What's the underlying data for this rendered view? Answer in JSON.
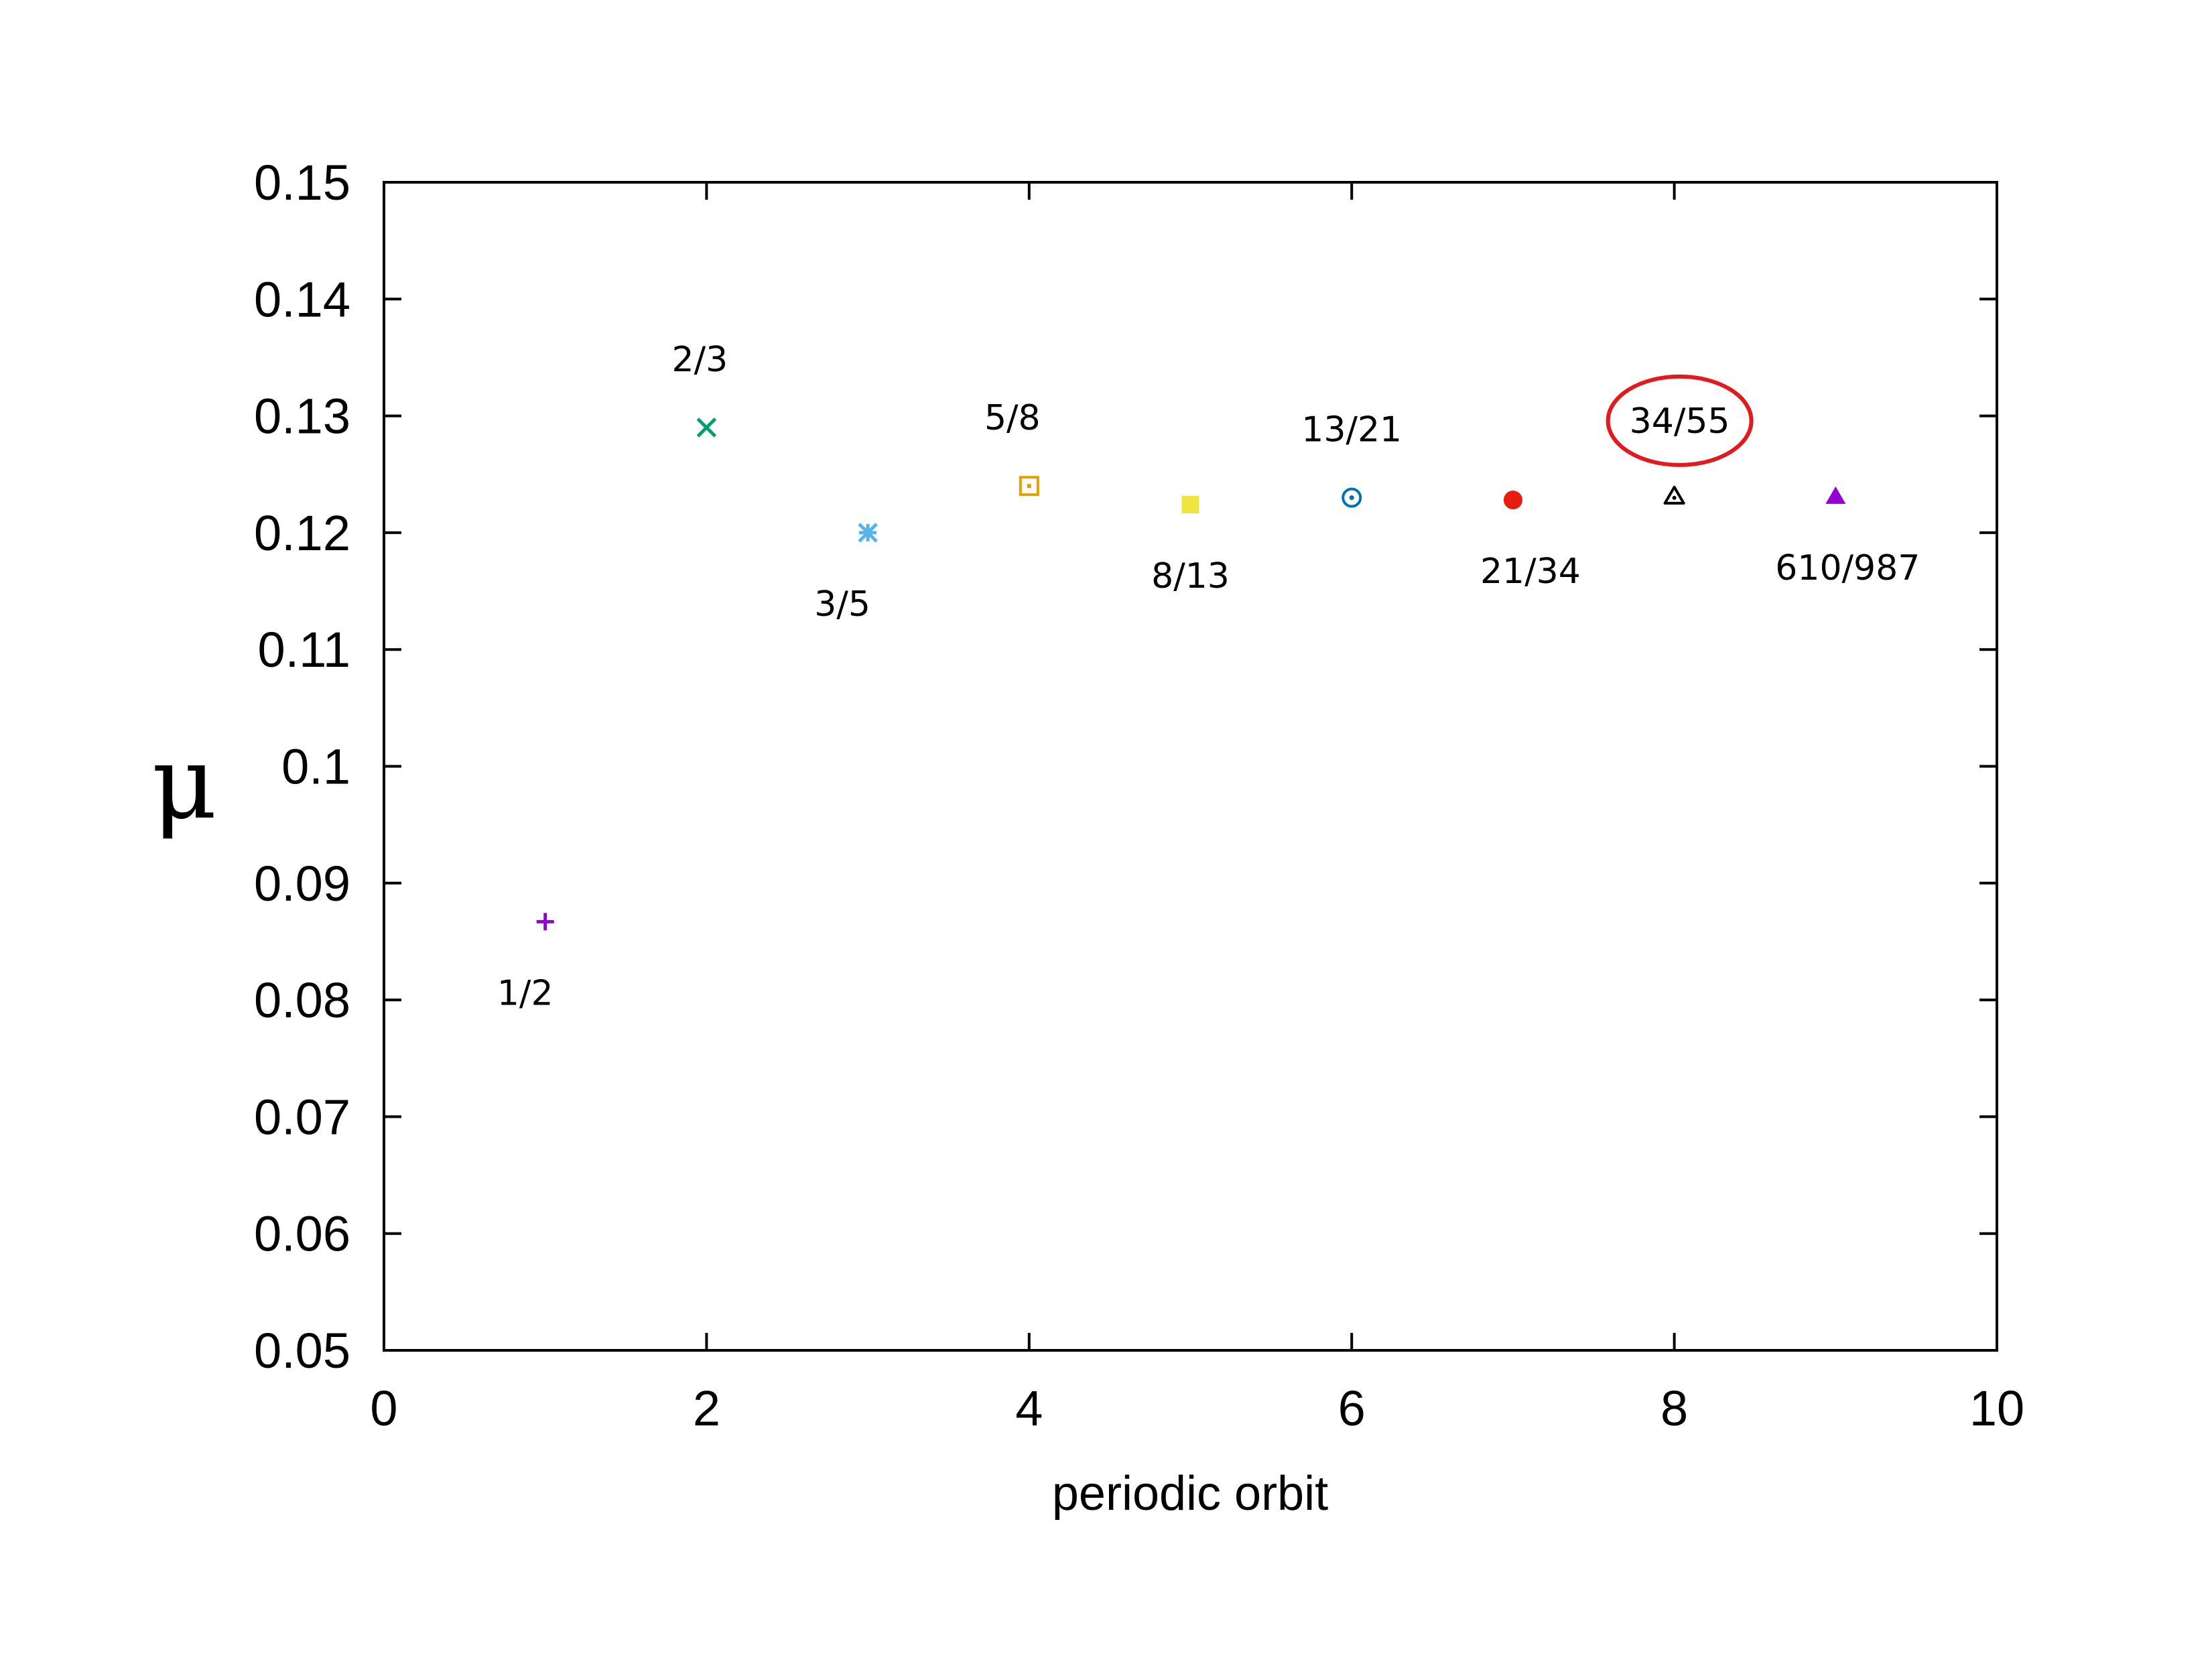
{
  "chart_data": {
    "type": "scatter",
    "title": "",
    "xlabel": "periodic orbit",
    "ylabel": "μ",
    "xlim": [
      0,
      10
    ],
    "ylim": [
      0.05,
      0.15
    ],
    "x_ticks": [
      "0",
      "2",
      "4",
      "6",
      "8",
      "10"
    ],
    "y_ticks": [
      "0.05",
      "0.06",
      "0.07",
      "0.08",
      "0.09",
      "0.1",
      "0.11",
      "0.12",
      "0.13",
      "0.14",
      "0.15"
    ],
    "grid": false,
    "legend": "none",
    "points": [
      {
        "x": 1,
        "y": 0.0867,
        "label": "1/2",
        "marker": "plus",
        "color": "#9400d3",
        "label_pos": "below"
      },
      {
        "x": 2,
        "y": 0.129,
        "label": "2/3",
        "marker": "cross",
        "color": "#009e73",
        "label_pos": "above"
      },
      {
        "x": 3,
        "y": 0.12,
        "label": "3/5",
        "marker": "asterisk",
        "color": "#56b4e9",
        "label_pos": "below"
      },
      {
        "x": 4,
        "y": 0.124,
        "label": "5/8",
        "marker": "square-dot",
        "color": "#e69f00",
        "label_pos": "above"
      },
      {
        "x": 5,
        "y": 0.1224,
        "label": "8/13",
        "marker": "square-filled",
        "color": "#f0e442",
        "label_pos": "below"
      },
      {
        "x": 6,
        "y": 0.123,
        "label": "13/21",
        "marker": "circle-dot",
        "color": "#0072b2",
        "label_pos": "above"
      },
      {
        "x": 7,
        "y": 0.1228,
        "label": "21/34",
        "marker": "circle-filled",
        "color": "#e51e10",
        "label_pos": "below"
      },
      {
        "x": 8,
        "y": 0.1231,
        "label": "34/55",
        "marker": "triangle-dot",
        "color": "#000000",
        "label_pos": "above",
        "highlighted": true
      },
      {
        "x": 9,
        "y": 0.1231,
        "label": "610/987",
        "marker": "triangle-filled",
        "color": "#9400d3",
        "label_pos": "below"
      }
    ],
    "highlight_color": "#e31a1c"
  }
}
